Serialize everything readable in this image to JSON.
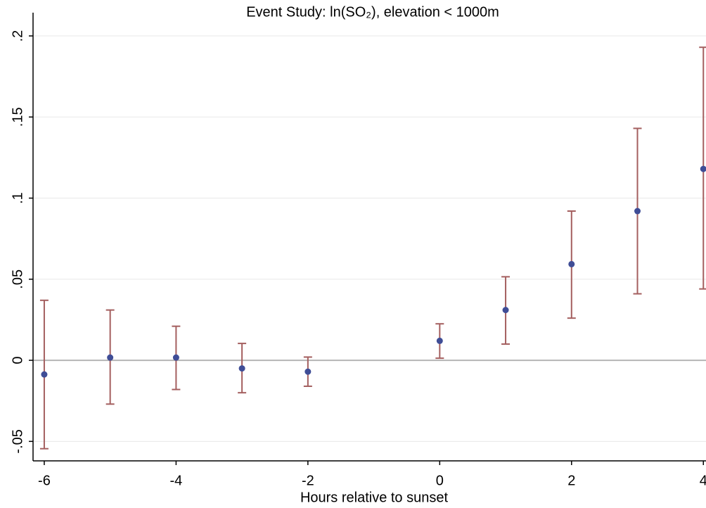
{
  "chart_data": {
    "type": "errorbar",
    "title": "Event Study: ln(SO₂), elevation < 1000m",
    "x_label": "Hours relative to sunset",
    "x": [
      -6,
      -5,
      -4,
      -3,
      -2,
      0,
      1,
      2,
      3,
      4
    ],
    "series": [
      {
        "color": "#3f4d96",
        "error_color": "#a45f5f",
        "values": [
          -0.0087,
          0.0017,
          0.0017,
          -0.005,
          -0.007,
          0.012,
          0.031,
          0.0593,
          0.092,
          0.118
        ],
        "lower": [
          -0.0545,
          -0.027,
          -0.018,
          -0.02,
          -0.016,
          0.0013,
          0.01,
          0.026,
          0.041,
          0.044
        ],
        "upper": [
          0.037,
          0.031,
          0.021,
          0.0104,
          0.002,
          0.0225,
          0.0515,
          0.092,
          0.143,
          0.193
        ]
      }
    ],
    "xlim": [
      -6.17,
      4.04
    ],
    "ylim": [
      -0.062,
      0.21
    ],
    "xticks": [
      -6,
      -4,
      -2,
      0,
      2,
      4
    ],
    "yticks": [
      {
        "value": -0.05,
        "label": "-.05"
      },
      0,
      {
        "value": 0.05,
        "label": ".05"
      },
      {
        "value": 0.1,
        "label": ".1"
      },
      {
        "value": 0.15,
        "label": ".15"
      },
      {
        "value": 0.2,
        "label": ".2"
      }
    ],
    "grid": true
  }
}
